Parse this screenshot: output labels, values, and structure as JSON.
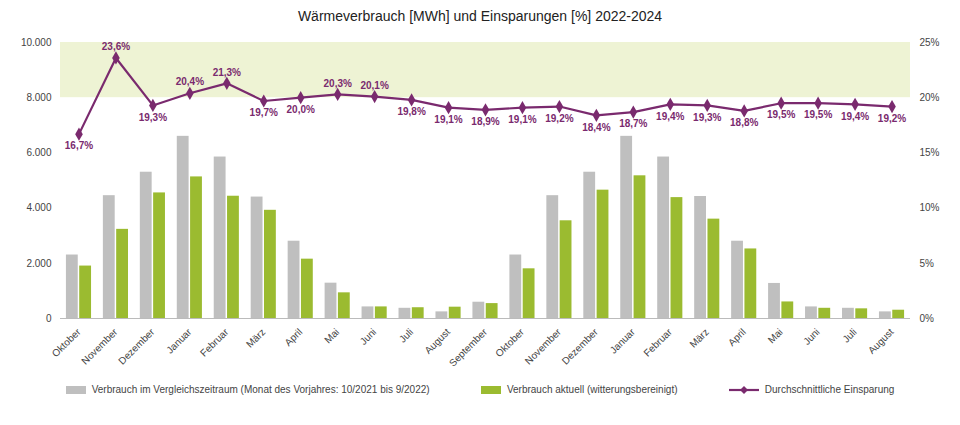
{
  "chart_data": {
    "type": "bar",
    "title": "Wärmeverbrauch [MWh] und Einsparungen [%] 2022-2024",
    "categories": [
      "Oktober",
      "November",
      "Dezember",
      "Januar",
      "Februar",
      "März",
      "April",
      "Mai",
      "Juni",
      "Juli",
      "August",
      "September",
      "Oktober",
      "November",
      "Dezember",
      "Januar",
      "Februar",
      "März",
      "April",
      "Mai",
      "Juni",
      "Juli",
      "August"
    ],
    "series": [
      {
        "name": "Verbrauch im Vergleichszeitraum (Monat des Vorjahres: 10/2021 bis 9/2022)",
        "color": "#bfbfbf",
        "values": [
          2300,
          4450,
          5300,
          6600,
          5850,
          4400,
          2800,
          1280,
          420,
          370,
          240,
          590,
          2300,
          4450,
          5300,
          6600,
          5850,
          4420,
          2800,
          1270,
          420,
          370,
          240
        ]
      },
      {
        "name": "Verbrauch aktuell (witterungsbereinigt)",
        "color": "#9bbb30",
        "values": [
          1900,
          3230,
          4550,
          5130,
          4430,
          3920,
          2150,
          930,
          420,
          390,
          410,
          540,
          1800,
          3540,
          4650,
          5170,
          4380,
          3600,
          2520,
          600,
          370,
          350,
          300
        ]
      },
      {
        "name": "Durchschnittliche Einsparung",
        "color": "#7a2a6e",
        "type": "line",
        "marker": "diamond",
        "axis": "y2",
        "data_labels": true,
        "values": [
          16.7,
          23.6,
          19.3,
          20.4,
          21.3,
          19.7,
          20.0,
          20.3,
          20.1,
          19.8,
          19.1,
          18.9,
          19.1,
          19.2,
          18.4,
          18.7,
          19.4,
          19.3,
          18.8,
          19.5,
          19.5,
          19.4,
          19.2
        ],
        "value_labels": [
          "16,7%",
          "23,6%",
          "19,3%",
          "20,4%",
          "21,3%",
          "19,7%",
          "20,0%",
          "20,3%",
          "20,1%",
          "19,8%",
          "19,1%",
          "18,9%",
          "19,1%",
          "19,2%",
          "18,4%",
          "18,7%",
          "19,4%",
          "19,3%",
          "18,8%",
          "19,5%",
          "19,5%",
          "19,4%",
          "19,2%"
        ]
      }
    ],
    "ylim": [
      0,
      10000
    ],
    "yticks": [
      0,
      {
        "value": 2000,
        "label": "2.000"
      },
      {
        "value": 4000,
        "label": "4.000"
      },
      {
        "value": 6000,
        "label": "6.000"
      },
      {
        "value": 8000,
        "label": "8.000"
      },
      {
        "value": 10000,
        "label": "10.000"
      }
    ],
    "y2lim": [
      0,
      25
    ],
    "y2ticks": [
      {
        "value": 0,
        "label": "0%"
      },
      {
        "value": 5,
        "label": "5%"
      },
      {
        "value": 10,
        "label": "10%"
      },
      {
        "value": 15,
        "label": "15%"
      },
      {
        "value": 20,
        "label": "20%"
      },
      {
        "value": 25,
        "label": "25%"
      }
    ],
    "target_band": [
      20,
      25
    ],
    "grid": false,
    "legend": "bottom"
  }
}
